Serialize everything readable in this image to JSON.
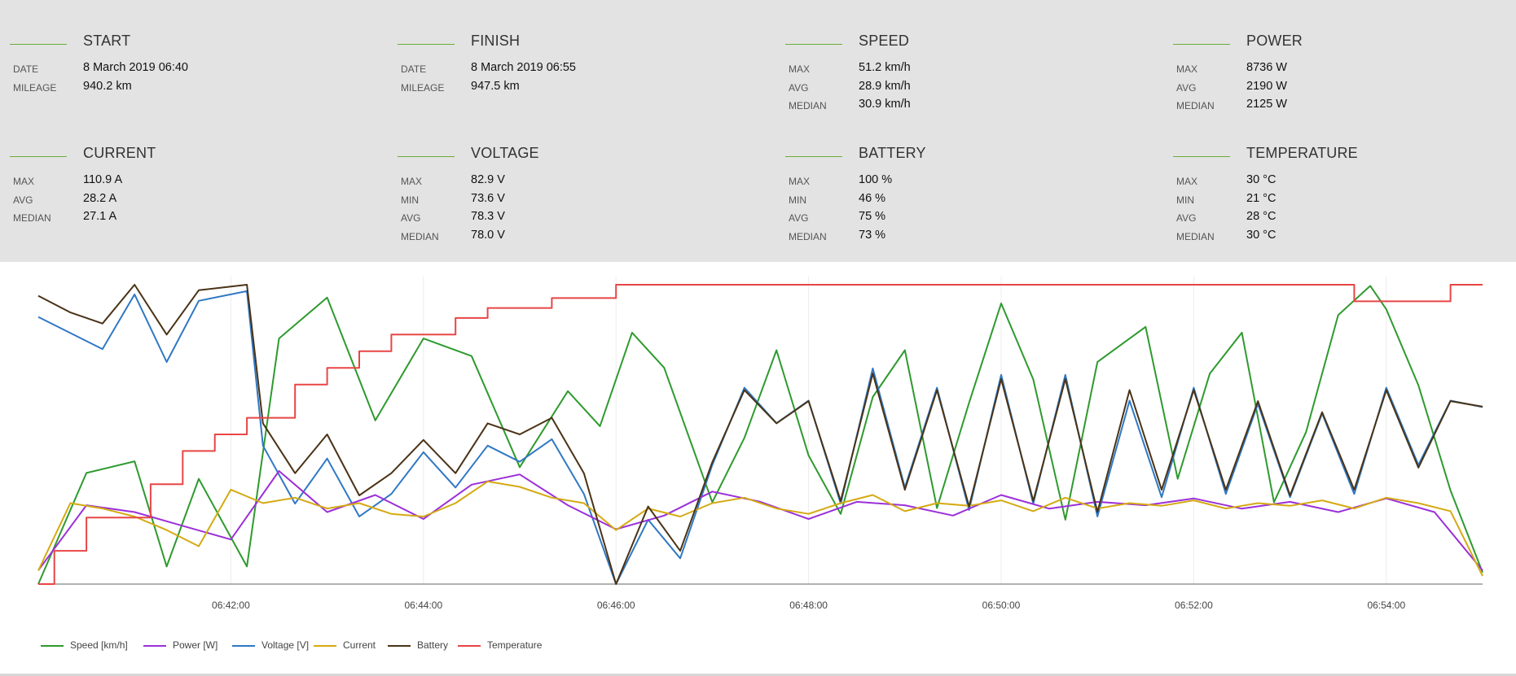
{
  "stats": [
    {
      "title": "START",
      "rows": [
        {
          "label": "DATE",
          "value": "8 March 2019 06:40"
        },
        {
          "label": "MILEAGE",
          "value": "940.2 km"
        }
      ]
    },
    {
      "title": "FINISH",
      "rows": [
        {
          "label": "DATE",
          "value": "8 March 2019 06:55"
        },
        {
          "label": "MILEAGE",
          "value": "947.5 km"
        }
      ]
    },
    {
      "title": "SPEED",
      "rows": [
        {
          "label": "MAX",
          "value": "51.2 km/h"
        },
        {
          "label": "AVG",
          "value": "28.9 km/h"
        },
        {
          "label": "MEDIAN",
          "value": "30.9 km/h"
        }
      ]
    },
    {
      "title": "POWER",
      "rows": [
        {
          "label": "MAX",
          "value": "8736 W"
        },
        {
          "label": "AVG",
          "value": "2190 W"
        },
        {
          "label": "MEDIAN",
          "value": "2125 W"
        }
      ]
    },
    {
      "title": "CURRENT",
      "rows": [
        {
          "label": "MAX",
          "value": "110.9 A"
        },
        {
          "label": "AVG",
          "value": "28.2 A"
        },
        {
          "label": "MEDIAN",
          "value": "27.1 A"
        }
      ]
    },
    {
      "title": "VOLTAGE",
      "rows": [
        {
          "label": "MAX",
          "value": "82.9 V"
        },
        {
          "label": "MIN",
          "value": "73.6 V"
        },
        {
          "label": "AVG",
          "value": "78.3 V"
        },
        {
          "label": "MEDIAN",
          "value": "78.0 V"
        }
      ]
    },
    {
      "title": "BATTERY",
      "rows": [
        {
          "label": "MAX",
          "value": "100 %"
        },
        {
          "label": "MIN",
          "value": "46 %"
        },
        {
          "label": "AVG",
          "value": "75 %"
        },
        {
          "label": "MEDIAN",
          "value": "73 %"
        }
      ]
    },
    {
      "title": "TEMPERATURE",
      "rows": [
        {
          "label": "MAX",
          "value": "30 °C"
        },
        {
          "label": "MIN",
          "value": "21 °C"
        },
        {
          "label": "AVG",
          "value": "28 °C"
        },
        {
          "label": "MEDIAN",
          "value": "30 °C"
        }
      ]
    }
  ],
  "colors": {
    "panel_bg": "#e3e3e3",
    "accent_rule": "#6aad3a",
    "speed": "#2e9a2e",
    "power": "#9b30d9",
    "voltage": "#2f78c4",
    "current": "#d4aa12",
    "battery": "#4a3316",
    "temperature": "#e84545"
  },
  "chart_data": {
    "type": "line",
    "x_start": "06:40:00",
    "x_end": "06:55:00",
    "x_ticks": [
      "06:42:00",
      "06:44:00",
      "06:46:00",
      "06:48:00",
      "06:50:00",
      "06:52:00",
      "06:54:00"
    ],
    "grid": "vertical",
    "legend_position": "bottom-left",
    "series": [
      {
        "name": "Speed [km/h]",
        "color_key": "speed",
        "unit": "km/h",
        "min": 0,
        "max": 51.2,
        "x": [
          "06:40:00",
          "06:40:30",
          "06:41:00",
          "06:41:20",
          "06:41:40",
          "06:42:10",
          "06:42:30",
          "06:43:00",
          "06:43:30",
          "06:44:00",
          "06:44:30",
          "06:45:00",
          "06:45:30",
          "06:45:50",
          "06:46:10",
          "06:46:30",
          "06:47:00",
          "06:47:20",
          "06:47:40",
          "06:48:00",
          "06:48:20",
          "06:48:40",
          "06:49:00",
          "06:49:20",
          "06:49:40",
          "06:50:00",
          "06:50:20",
          "06:50:40",
          "06:51:00",
          "06:51:30",
          "06:51:50",
          "06:52:10",
          "06:52:30",
          "06:52:50",
          "06:53:10",
          "06:53:30",
          "06:53:50",
          "06:54:00",
          "06:54:20",
          "06:54:40",
          "06:55:00"
        ],
        "y": [
          0,
          19,
          21,
          3,
          18,
          3,
          42,
          49,
          28,
          42,
          39,
          20,
          33,
          27,
          43,
          37,
          14,
          25,
          40,
          22,
          12,
          32,
          40,
          13,
          31,
          48,
          35,
          11,
          38,
          44,
          18,
          36,
          43,
          14,
          26,
          46,
          51,
          47,
          34,
          16,
          2
        ]
      },
      {
        "name": "Power [W]",
        "color_key": "power",
        "unit": "W",
        "min": 0,
        "max": 8736,
        "x": [
          "06:40:00",
          "06:40:30",
          "06:41:00",
          "06:41:30",
          "06:42:00",
          "06:42:30",
          "06:43:00",
          "06:43:30",
          "06:44:00",
          "06:44:30",
          "06:45:00",
          "06:45:30",
          "06:46:00",
          "06:46:30",
          "06:47:00",
          "06:47:30",
          "06:48:00",
          "06:48:30",
          "06:49:00",
          "06:49:30",
          "06:50:00",
          "06:50:30",
          "06:51:00",
          "06:51:30",
          "06:52:00",
          "06:52:30",
          "06:53:00",
          "06:53:30",
          "06:54:00",
          "06:54:30",
          "06:55:00"
        ],
        "y": [
          400,
          2300,
          2100,
          1700,
          1300,
          3300,
          2100,
          2600,
          1900,
          2900,
          3200,
          2300,
          1600,
          2000,
          2700,
          2400,
          1900,
          2400,
          2300,
          2000,
          2600,
          2200,
          2400,
          2300,
          2500,
          2200,
          2400,
          2100,
          2500,
          2100,
          400
        ]
      },
      {
        "name": "Voltage [V]",
        "color_key": "voltage",
        "unit": "V",
        "min": 73.6,
        "max": 82.9,
        "x": [
          "06:40:00",
          "06:40:20",
          "06:40:40",
          "06:41:00",
          "06:41:20",
          "06:41:40",
          "06:42:10",
          "06:42:20",
          "06:42:40",
          "06:43:00",
          "06:43:20",
          "06:43:40",
          "06:44:00",
          "06:44:20",
          "06:44:40",
          "06:45:00",
          "06:45:20",
          "06:45:40",
          "06:46:00",
          "06:46:20",
          "06:46:40",
          "06:47:00",
          "06:47:20",
          "06:47:40",
          "06:48:00",
          "06:48:20",
          "06:48:40",
          "06:49:00",
          "06:49:20",
          "06:49:40",
          "06:50:00",
          "06:50:20",
          "06:50:40",
          "06:51:00",
          "06:51:20",
          "06:51:40",
          "06:52:00",
          "06:52:20",
          "06:52:40",
          "06:53:00",
          "06:53:20",
          "06:53:40",
          "06:54:00",
          "06:54:20",
          "06:54:40",
          "06:55:00"
        ],
        "y": [
          81.9,
          81.4,
          80.9,
          82.6,
          80.5,
          82.4,
          82.7,
          77.9,
          76.1,
          77.5,
          75.7,
          76.4,
          77.7,
          76.6,
          77.9,
          77.4,
          78.1,
          76.4,
          73.6,
          75.6,
          74.4,
          77.3,
          79.7,
          78.6,
          79.3,
          76.1,
          80.3,
          76.6,
          79.7,
          75.9,
          80.1,
          76.1,
          80.1,
          75.7,
          79.3,
          76.3,
          79.7,
          76.4,
          79.2,
          76.3,
          78.9,
          76.4,
          79.7,
          77.3,
          79.3,
          79.1
        ]
      },
      {
        "name": "Current",
        "color_key": "current",
        "unit": "A",
        "min": 0,
        "max": 110.9,
        "x": [
          "06:40:00",
          "06:40:20",
          "06:40:40",
          "06:41:00",
          "06:41:20",
          "06:41:40",
          "06:42:00",
          "06:42:20",
          "06:42:40",
          "06:43:00",
          "06:43:20",
          "06:43:40",
          "06:44:00",
          "06:44:20",
          "06:44:40",
          "06:45:00",
          "06:45:20",
          "06:45:40",
          "06:46:00",
          "06:46:20",
          "06:46:40",
          "06:47:00",
          "06:47:20",
          "06:47:40",
          "06:48:00",
          "06:48:20",
          "06:48:40",
          "06:49:00",
          "06:49:20",
          "06:49:40",
          "06:50:00",
          "06:50:20",
          "06:50:40",
          "06:51:00",
          "06:51:20",
          "06:51:40",
          "06:52:00",
          "06:52:20",
          "06:52:40",
          "06:53:00",
          "06:53:20",
          "06:53:40",
          "06:54:00",
          "06:54:20",
          "06:54:40",
          "06:55:00"
        ],
        "y": [
          5,
          30,
          28,
          25,
          20,
          14,
          35,
          30,
          32,
          28,
          30,
          26,
          25,
          30,
          38,
          36,
          32,
          30,
          20,
          28,
          25,
          30,
          32,
          28,
          26,
          30,
          33,
          27,
          30,
          29,
          31,
          27,
          32,
          28,
          30,
          29,
          31,
          28,
          30,
          29,
          31,
          28,
          32,
          30,
          27,
          3
        ]
      },
      {
        "name": "Battery",
        "color_key": "battery",
        "unit": "%",
        "min": 46,
        "max": 100,
        "x": [
          "06:40:00",
          "06:40:20",
          "06:40:40",
          "06:41:00",
          "06:41:20",
          "06:41:40",
          "06:42:10",
          "06:42:20",
          "06:42:40",
          "06:43:00",
          "06:43:20",
          "06:43:40",
          "06:44:00",
          "06:44:20",
          "06:44:40",
          "06:45:00",
          "06:45:20",
          "06:45:40",
          "06:46:00",
          "06:46:20",
          "06:46:40",
          "06:47:00",
          "06:47:20",
          "06:47:40",
          "06:48:00",
          "06:48:20",
          "06:48:40",
          "06:49:00",
          "06:49:20",
          "06:49:40",
          "06:50:00",
          "06:50:20",
          "06:50:40",
          "06:51:00",
          "06:51:20",
          "06:51:40",
          "06:52:00",
          "06:52:20",
          "06:52:40",
          "06:53:00",
          "06:53:20",
          "06:53:40",
          "06:54:00",
          "06:54:20",
          "06:54:40",
          "06:55:00"
        ],
        "y": [
          98,
          95,
          93,
          100,
          91,
          99,
          100,
          75,
          66,
          73,
          62,
          66,
          72,
          66,
          75,
          73,
          76,
          66,
          46,
          60,
          52,
          68,
          81,
          75,
          79,
          61,
          84,
          63,
          81,
          60,
          83,
          61,
          83,
          59,
          81,
          63,
          81,
          63,
          79,
          62,
          77,
          63,
          81,
          67,
          79,
          78
        ]
      },
      {
        "name": "Temperature",
        "color_key": "temperature",
        "unit": "°C",
        "min": 21,
        "max": 30,
        "x": [
          "06:40:00",
          "06:40:10",
          "06:40:30",
          "06:41:10",
          "06:41:30",
          "06:41:50",
          "06:42:10",
          "06:42:40",
          "06:43:00",
          "06:43:20",
          "06:43:40",
          "06:44:00",
          "06:44:20",
          "06:44:40",
          "06:45:00",
          "06:45:20",
          "06:45:40",
          "06:46:00",
          "06:46:10",
          "06:46:20",
          "06:46:30",
          "06:46:40",
          "06:47:00",
          "06:53:20",
          "06:53:40",
          "06:54:00",
          "06:54:20",
          "06:54:40",
          "06:55:00"
        ],
        "y": [
          21,
          22,
          23,
          24,
          25,
          25.5,
          26,
          27,
          27.5,
          28,
          28.5,
          28.5,
          29,
          29.3,
          29.3,
          29.6,
          29.6,
          30,
          30,
          30,
          30,
          30,
          30,
          30,
          29.5,
          29.5,
          29.5,
          30,
          30
        ]
      }
    ]
  }
}
